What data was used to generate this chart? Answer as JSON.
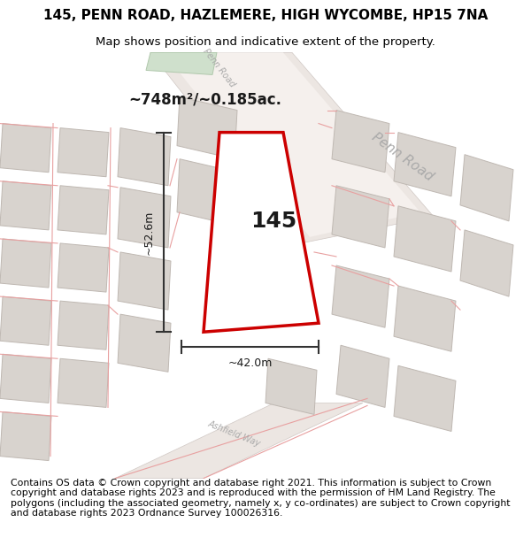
{
  "title_line1": "145, PENN ROAD, HAZLEMERE, HIGH WYCOMBE, HP15 7NA",
  "title_line2": "Map shows position and indicative extent of the property.",
  "footer_text": "Contains OS data © Crown copyright and database right 2021. This information is subject to Crown copyright and database rights 2023 and is reproduced with the permission of HM Land Registry. The polygons (including the associated geometry, namely x, y co-ordinates) are subject to Crown copyright and database rights 2023 Ordnance Survey 100026316.",
  "area_label": "~748m²/~0.185ac.",
  "number_label": "145",
  "dim_width_label": "~42.0m",
  "dim_height_label": "~52.6m",
  "road_label_main": "Penn Road",
  "road_label_small": "Penn Road",
  "street_label": "Ashfield Way",
  "background_color": "#ffffff",
  "map_bg_color": "#f8f4f2",
  "block_fill": "#d8d3ce",
  "block_edge": "#bfb8b2",
  "road_fill": "#ece6e2",
  "road_edge": "#d0c8c4",
  "green_fill": "#cfe0cc",
  "green_edge": "#b0c8ac",
  "plot_edge": "#cc0000",
  "plot_fill": "#ffffff",
  "dim_color": "#333333",
  "label_color": "#1a1a1a",
  "road_text_color": "#aaaaaa",
  "thin_road_color": "#e8a0a0",
  "title_fontsize": 11,
  "subtitle_fontsize": 9.5,
  "footer_fontsize": 7.8,
  "area_label_fontsize": 12,
  "number_fontsize": 18,
  "dim_fontsize": 9,
  "road_fontsize_main": 11,
  "road_fontsize_small": 7
}
